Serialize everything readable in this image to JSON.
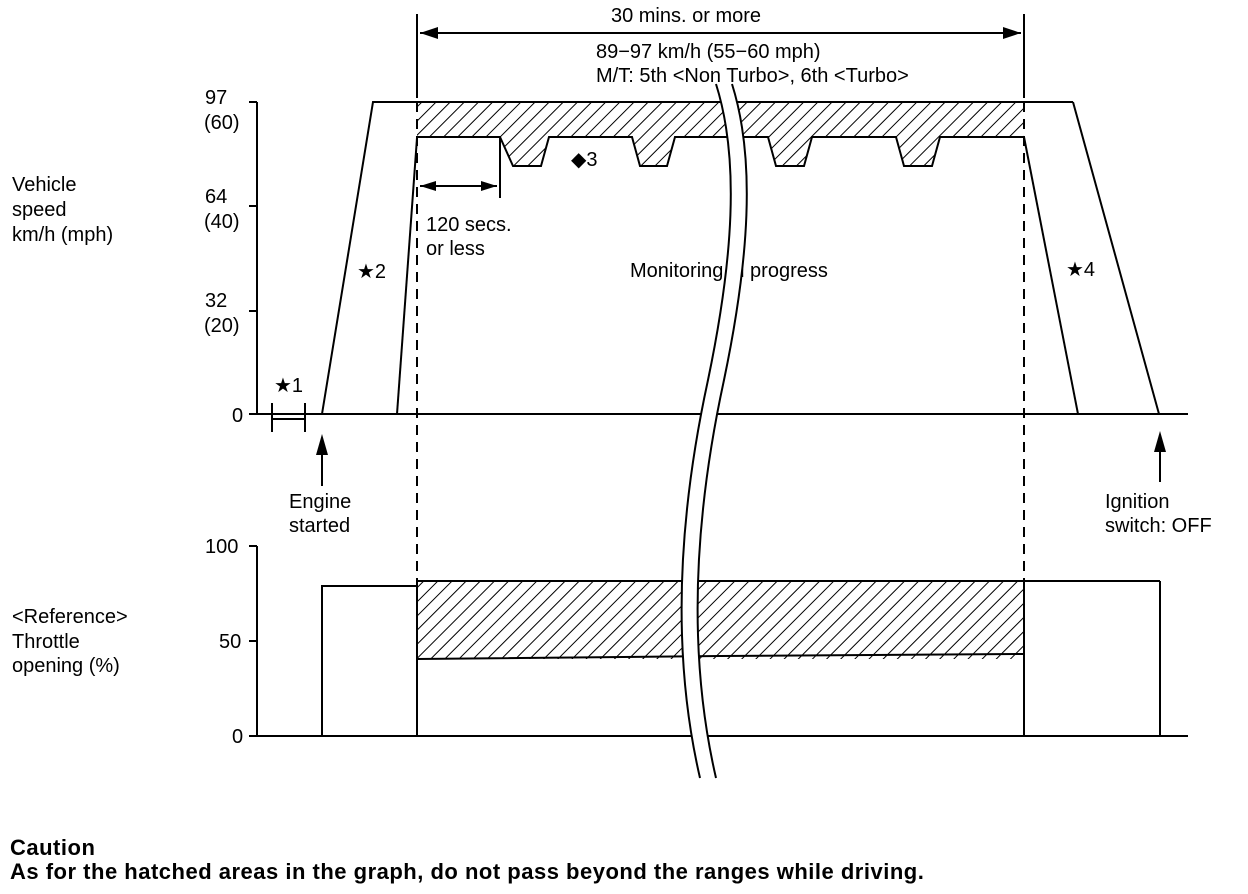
{
  "top": {
    "duration": "30 mins. or more",
    "speed_range": "89−97 km/h (55−60 mph)",
    "gear_info": "M/T: 5th <Non Turbo>, 6th <Turbo>"
  },
  "speed_axis": {
    "label_lines": [
      "Vehicle",
      "speed",
      "km/h (mph)"
    ],
    "ticks": [
      {
        "kmh": "97",
        "mph": "(60)"
      },
      {
        "kmh": "64",
        "mph": "(40)"
      },
      {
        "kmh": "32",
        "mph": "(20)"
      },
      {
        "kmh": "0",
        "mph": ""
      }
    ]
  },
  "throttle_axis": {
    "label_lines": [
      "<Reference>",
      "Throttle",
      "opening (%)"
    ],
    "ticks": [
      "100",
      "50",
      "0"
    ]
  },
  "annotations": {
    "star1": "★1",
    "star2": "★2",
    "diamond3": "◆3",
    "star4": "★4",
    "pulse_line1": "120 secs.",
    "pulse_line2": "or less",
    "monitoring": "Monitoring in progress",
    "engine_started_line1": "Engine",
    "engine_started_line2": "started",
    "ignition_line1": "Ignition",
    "ignition_line2": "switch: OFF"
  },
  "caution": {
    "title": "Caution",
    "text": "As for the hatched areas in the graph, do not pass beyond the ranges while driving."
  }
}
